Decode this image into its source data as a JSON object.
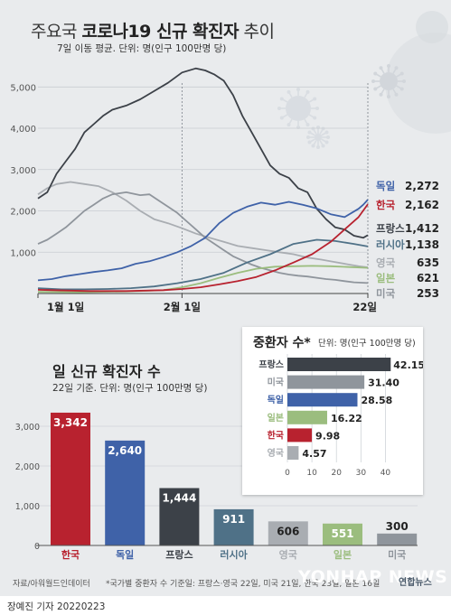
{
  "header": {
    "title_prefix": "주요국 ",
    "title_bold": "코로나19 신규 확진자",
    "title_suffix": " 추이",
    "subtitle": "7일 이동 평균. 단위: 명(인구 100만명 당)"
  },
  "colors": {
    "프랑스": "#3c4148",
    "미국": "#8f959c",
    "독일": "#3f62a8",
    "일본": "#9bbd7e",
    "한국": "#b8222f",
    "러시아": "#4f7187",
    "영국": "#a9adb2"
  },
  "chart_data": [
    {
      "type": "line",
      "title": "주요국 코로나19 신규 확진자 추이",
      "subtitle": "7일 이동 평균. 단위: 명(인구 100만명 당)",
      "ylim": [
        0,
        5400
      ],
      "y_ticks": [
        1000,
        2000,
        3000,
        4000,
        5000
      ],
      "y_tick_labels": [
        "1,000",
        "2,000",
        "3,000",
        "4,000",
        "5,000"
      ],
      "x_tick_labels": [
        "1월 1일",
        "2월 1일",
        "22일"
      ],
      "grid": true,
      "legend": "right",
      "series": [
        {
          "name": "독일",
          "end_label": "2,272",
          "values": [
            [
              1,
              320
            ],
            [
              4,
              350
            ],
            [
              7,
              420
            ],
            [
              10,
              470
            ],
            [
              13,
              520
            ],
            [
              16,
              560
            ],
            [
              19,
              610
            ],
            [
              22,
              720
            ],
            [
              25,
              780
            ],
            [
              28,
              880
            ],
            [
              31,
              1000
            ],
            [
              34,
              1150
            ],
            [
              37,
              1350
            ],
            [
              40,
              1700
            ],
            [
              43,
              1950
            ],
            [
              46,
              2100
            ],
            [
              49,
              2200
            ],
            [
              52,
              2150
            ],
            [
              55,
              2220
            ],
            [
              58,
              2150
            ],
            [
              61,
              2060
            ],
            [
              64,
              1920
            ],
            [
              67,
              1850
            ],
            [
              70,
              2050
            ],
            [
              71,
              2150
            ],
            [
              72,
              2272
            ]
          ]
        },
        {
          "name": "한국",
          "end_label": "2,162",
          "values": [
            [
              1,
              90
            ],
            [
              4,
              80
            ],
            [
              8,
              70
            ],
            [
              12,
              60
            ],
            [
              16,
              60
            ],
            [
              20,
              60
            ],
            [
              24,
              70
            ],
            [
              28,
              80
            ],
            [
              32,
              110
            ],
            [
              36,
              150
            ],
            [
              40,
              220
            ],
            [
              44,
              300
            ],
            [
              48,
              400
            ],
            [
              52,
              560
            ],
            [
              56,
              750
            ],
            [
              60,
              950
            ],
            [
              64,
              1250
            ],
            [
              67,
              1550
            ],
            [
              70,
              1850
            ],
            [
              72,
              2162
            ]
          ]
        },
        {
          "name": "프랑스",
          "end_label": "1,412",
          "values": [
            [
              1,
              2300
            ],
            [
              3,
              2450
            ],
            [
              5,
              2900
            ],
            [
              7,
              3200
            ],
            [
              9,
              3500
            ],
            [
              11,
              3900
            ],
            [
              13,
              4100
            ],
            [
              15,
              4300
            ],
            [
              17,
              4450
            ],
            [
              20,
              4550
            ],
            [
              23,
              4700
            ],
            [
              26,
              4900
            ],
            [
              29,
              5100
            ],
            [
              32,
              5350
            ],
            [
              35,
              5450
            ],
            [
              37,
              5400
            ],
            [
              39,
              5300
            ],
            [
              41,
              5150
            ],
            [
              43,
              4800
            ],
            [
              45,
              4300
            ],
            [
              47,
              3900
            ],
            [
              49,
              3500
            ],
            [
              51,
              3100
            ],
            [
              53,
              2900
            ],
            [
              55,
              2800
            ],
            [
              57,
              2550
            ],
            [
              59,
              2450
            ],
            [
              61,
              2050
            ],
            [
              63,
              1800
            ],
            [
              65,
              1600
            ],
            [
              67,
              1550
            ],
            [
              69,
              1400
            ],
            [
              71,
              1350
            ],
            [
              72,
              1412
            ]
          ]
        },
        {
          "name": "러시아",
          "end_label": "1,138",
          "values": [
            [
              1,
              130
            ],
            [
              6,
              100
            ],
            [
              11,
              100
            ],
            [
              16,
              110
            ],
            [
              21,
              130
            ],
            [
              26,
              170
            ],
            [
              31,
              250
            ],
            [
              36,
              350
            ],
            [
              41,
              500
            ],
            [
              46,
              750
            ],
            [
              51,
              950
            ],
            [
              56,
              1200
            ],
            [
              61,
              1300
            ],
            [
              65,
              1270
            ],
            [
              69,
              1200
            ],
            [
              72,
              1138
            ]
          ]
        },
        {
          "name": "영국",
          "end_label": "635",
          "values": [
            [
              1,
              2400
            ],
            [
              3,
              2550
            ],
            [
              5,
              2650
            ],
            [
              8,
              2700
            ],
            [
              11,
              2650
            ],
            [
              14,
              2600
            ],
            [
              17,
              2450
            ],
            [
              20,
              2250
            ],
            [
              23,
              2000
            ],
            [
              26,
              1800
            ],
            [
              29,
              1700
            ],
            [
              32,
              1580
            ],
            [
              35,
              1450
            ],
            [
              38,
              1350
            ],
            [
              41,
              1250
            ],
            [
              44,
              1150
            ],
            [
              47,
              1100
            ],
            [
              50,
              1050
            ],
            [
              53,
              1000
            ],
            [
              56,
              950
            ],
            [
              59,
              870
            ],
            [
              62,
              820
            ],
            [
              65,
              760
            ],
            [
              68,
              700
            ],
            [
              70,
              660
            ],
            [
              72,
              635
            ]
          ]
        },
        {
          "name": "일본",
          "end_label": "621",
          "values": [
            [
              1,
              40
            ],
            [
              10,
              30
            ],
            [
              20,
              50
            ],
            [
              28,
              80
            ],
            [
              32,
              150
            ],
            [
              36,
              250
            ],
            [
              40,
              380
            ],
            [
              44,
              500
            ],
            [
              48,
              600
            ],
            [
              52,
              650
            ],
            [
              56,
              660
            ],
            [
              60,
              670
            ],
            [
              64,
              660
            ],
            [
              68,
              640
            ],
            [
              72,
              621
            ]
          ]
        },
        {
          "name": "미국",
          "end_label": "253",
          "values": [
            [
              1,
              1200
            ],
            [
              3,
              1300
            ],
            [
              5,
              1450
            ],
            [
              7,
              1600
            ],
            [
              9,
              1800
            ],
            [
              11,
              2000
            ],
            [
              13,
              2150
            ],
            [
              15,
              2300
            ],
            [
              17,
              2400
            ],
            [
              20,
              2450
            ],
            [
              23,
              2380
            ],
            [
              25,
              2400
            ],
            [
              27,
              2250
            ],
            [
              29,
              2100
            ],
            [
              31,
              1950
            ],
            [
              33,
              1750
            ],
            [
              35,
              1550
            ],
            [
              37,
              1350
            ],
            [
              39,
              1200
            ],
            [
              41,
              1050
            ],
            [
              43,
              900
            ],
            [
              45,
              800
            ],
            [
              47,
              700
            ],
            [
              49,
              620
            ],
            [
              51,
              560
            ],
            [
              53,
              500
            ],
            [
              55,
              460
            ],
            [
              57,
              430
            ],
            [
              59,
              410
            ],
            [
              61,
              380
            ],
            [
              63,
              350
            ],
            [
              65,
              330
            ],
            [
              67,
              300
            ],
            [
              69,
              270
            ],
            [
              72,
              253
            ]
          ]
        }
      ]
    },
    {
      "type": "bar",
      "title": "일 신규 확진자 수",
      "subtitle": "22일 기준. 단위: 명(인구 100만명 당)",
      "categories": [
        "한국",
        "독일",
        "프랑스",
        "러시아",
        "영국",
        "일본",
        "미국"
      ],
      "values": [
        3342,
        2640,
        1444,
        911,
        606,
        551,
        300
      ],
      "value_labels": [
        "3,342",
        "2,640",
        "1,444",
        "911",
        "606",
        "551",
        "300"
      ],
      "ylim": [
        0,
        3500
      ],
      "y_ticks": [
        0,
        1000,
        2000,
        3000
      ],
      "y_tick_labels": [
        "0",
        "1,000",
        "2,000",
        "3,000"
      ]
    },
    {
      "type": "bar",
      "orientation": "horizontal",
      "title": "중환자 수*",
      "subtitle": "단위: 명(인구 100만명 당)",
      "categories": [
        "프랑스",
        "미국",
        "독일",
        "일본",
        "한국",
        "영국"
      ],
      "values": [
        42.15,
        31.4,
        28.58,
        16.22,
        9.98,
        4.57
      ],
      "value_labels": [
        "42.15",
        "31.40",
        "28.58",
        "16.22",
        "9.98",
        "4.57"
      ],
      "xlim": [
        0,
        45
      ],
      "x_ticks": [
        0,
        10,
        20,
        30,
        40
      ],
      "x_tick_labels": [
        "0",
        "10",
        "20",
        "30",
        "40"
      ]
    }
  ],
  "footer": {
    "note": "*국가별 중환자 수 기준일: 프랑스·영국 22일, 미국 21일, 한국 23일, 일본 16일",
    "source": "자료/아워월드인데이터",
    "byline": "장예진 기자  20220223",
    "watermark": "YONHAP NEWS",
    "logo": "연합뉴스"
  }
}
